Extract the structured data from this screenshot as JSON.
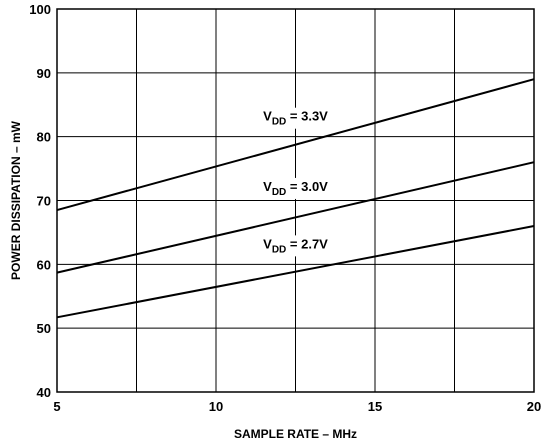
{
  "chart_data": {
    "type": "line",
    "xlabel": "SAMPLE RATE – MHz",
    "ylabel": "POWER DISSIPATION – mW",
    "xlim": [
      5,
      20
    ],
    "ylim": [
      40,
      100
    ],
    "x_ticks": [
      5,
      10,
      15,
      20
    ],
    "x_tick_labels": [
      "5",
      "10",
      "15",
      "20"
    ],
    "y_ticks": [
      40,
      50,
      60,
      70,
      80,
      90,
      100
    ],
    "y_tick_labels": [
      "40",
      "50",
      "60",
      "70",
      "80",
      "90",
      "100"
    ],
    "x_grid": [
      5,
      7.5,
      10,
      12.5,
      15,
      17.5,
      20
    ],
    "y_grid": [
      40,
      50,
      60,
      70,
      80,
      90,
      100
    ],
    "grid": true,
    "series": [
      {
        "label_main": "V",
        "label_sub": "DD",
        "label_rest": " = 3.3V",
        "x": [
          5,
          20
        ],
        "values": [
          68.5,
          89
        ]
      },
      {
        "label_main": "V",
        "label_sub": "DD",
        "label_rest": " = 3.0V",
        "x": [
          5,
          20
        ],
        "values": [
          58.7,
          76
        ]
      },
      {
        "label_main": "V",
        "label_sub": "DD",
        "label_rest": " = 2.7V",
        "x": [
          5,
          20
        ],
        "values": [
          51.7,
          66
        ]
      }
    ],
    "series_label_anchor": [
      {
        "x": 12.5,
        "y": 82.5
      },
      {
        "x": 12.5,
        "y": 71.5
      },
      {
        "x": 12.5,
        "y": 62.5
      }
    ]
  }
}
